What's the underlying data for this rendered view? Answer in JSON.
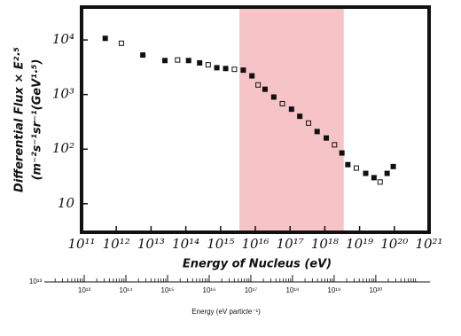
{
  "chart_data": [
    {
      "type": "scatter",
      "log_x": true,
      "log_y": true,
      "xlabel": "Energy of Nucleus (eV)",
      "ylabel": "Differential Flux × E²·⁵",
      "ylabel2": "(m⁻²s⁻¹sr⁻¹(GeV¹·⁵)",
      "xlim": [
        100000000000.0,
        1e+21
      ],
      "ylim": [
        3,
        40000
      ],
      "xticks": [
        {
          "value": 100000000000.0,
          "label": "10¹¹"
        },
        {
          "value": 1000000000000.0,
          "label": "10¹²"
        },
        {
          "value": 10000000000000.0,
          "label": "10¹³"
        },
        {
          "value": 100000000000000.0,
          "label": "10¹⁴"
        },
        {
          "value": 1000000000000000.0,
          "label": "10¹⁵"
        },
        {
          "value": 1e+16,
          "label": "10¹⁶"
        },
        {
          "value": 1e+17,
          "label": "10¹⁷"
        },
        {
          "value": 1e+18,
          "label": "10¹⁸"
        },
        {
          "value": 1e+19,
          "label": "10¹⁹"
        },
        {
          "value": 1e+20,
          "label": "10²⁰"
        },
        {
          "value": 1e+21,
          "label": "10²¹"
        }
      ],
      "yticks": [
        {
          "value": 10000,
          "label": "10⁴"
        },
        {
          "value": 1000,
          "label": "10³"
        },
        {
          "value": 100,
          "label": "10²"
        },
        10
      ],
      "band": [
        3500000000000000.0,
        3.5e+18
      ],
      "band_color": "#f6c3c6",
      "color": "#111111",
      "x": [
        480000000000.0,
        1400000000000.0,
        5800000000000.0,
        25000000000000.0,
        58000000000000.0,
        120000000000000.0,
        250000000000000.0,
        440000000000000.0,
        780000000000000.0,
        1400000000000000.0,
        2500000000000000.0,
        4500000000000000.0,
        8000000000000000.0,
        1.2e+16,
        1.9e+16,
        3.4e+16,
        6e+16,
        1.1e+17,
        1.9e+17,
        3.4e+17,
        6e+17,
        1.1e+18,
        1.9e+18,
        3.1e+18,
        4.6e+18,
        8.1e+18,
        1.5e+19,
        2.6e+19,
        3.9e+19,
        6.2e+19,
        9.3e+19
      ],
      "values": [
        10700,
        8700,
        5300,
        4200,
        4300,
        4200,
        3800,
        3500,
        3100,
        3000,
        2900,
        2800,
        2200,
        1500,
        1250,
        900,
        680,
        540,
        400,
        300,
        210,
        160,
        120,
        85,
        52,
        45,
        36,
        30,
        25,
        36,
        48
      ]
    },
    {
      "type": "axis",
      "log_x": true,
      "xlabel": "Energy     (eV particle⁻¹)",
      "edge_label": "10¹³",
      "xlim": [
        1100000000000.0,
        2e+21
      ],
      "xticks": [
        {
          "value": 10000000000000.0,
          "label": "10¹³"
        },
        {
          "value": 100000000000000.0,
          "label": "10¹⁴"
        },
        {
          "value": 1000000000000000.0,
          "label": "10¹⁵"
        },
        {
          "value": 1e+16,
          "label": "10¹⁶"
        },
        {
          "value": 1e+17,
          "label": "10¹⁷"
        },
        {
          "value": 1e+18,
          "label": "10¹⁸"
        },
        {
          "value": 1e+19,
          "label": "10¹⁹"
        },
        {
          "value": 1e+20,
          "label": "10²⁰"
        }
      ]
    }
  ]
}
